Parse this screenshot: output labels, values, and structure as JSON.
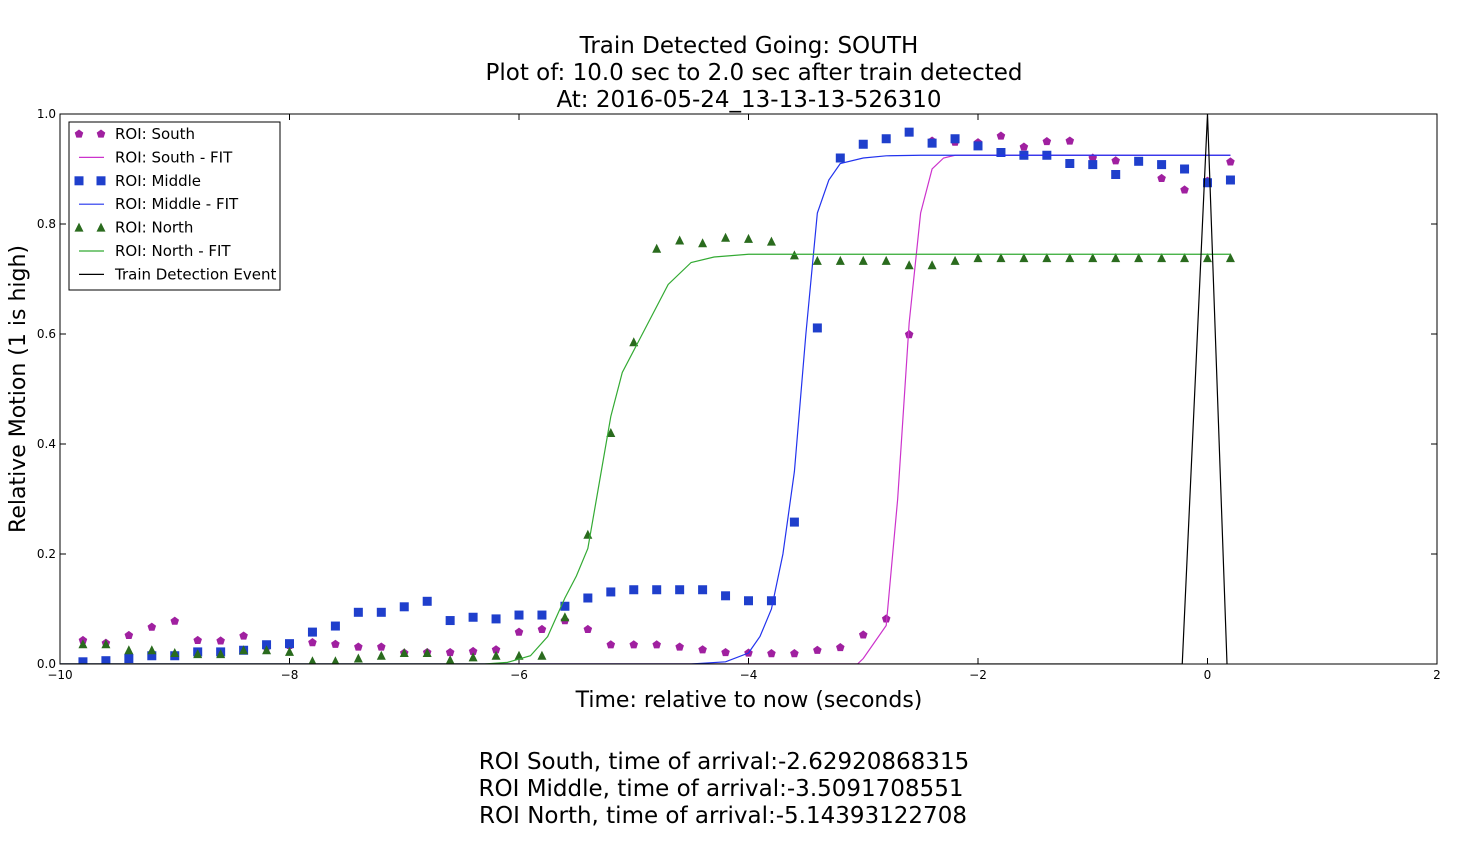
{
  "chart_data": {
    "type": "scatter",
    "title_lines": [
      "Train Detected Going: SOUTH",
      "Plot of: 10.0 sec to 2.0 sec after train detected",
      "At: 2016-05-24_13-13-13-526310"
    ],
    "xlabel": "Time: relative to now (seconds)",
    "ylabel": "Relative Motion (1 is high)",
    "xlim": [
      -10,
      2
    ],
    "ylim": [
      0,
      1
    ],
    "x_ticks": [
      {
        "value": -10,
        "label": "−10"
      },
      {
        "value": -8,
        "label": "−8"
      },
      {
        "value": -6,
        "label": "−6"
      },
      {
        "value": -4,
        "label": "−4"
      },
      {
        "value": -2,
        "label": "−2"
      },
      {
        "value": 0,
        "label": "0"
      },
      {
        "value": 2,
        "label": "2"
      }
    ],
    "y_ticks": [
      {
        "value": 0,
        "label": "0.0"
      },
      {
        "value": 0.2,
        "label": "0.2"
      },
      {
        "value": 0.4,
        "label": "0.4"
      },
      {
        "value": 0.6,
        "label": "0.6"
      },
      {
        "value": 0.8,
        "label": "0.8"
      },
      {
        "value": 1.0,
        "label": "1.0"
      }
    ],
    "grid": false,
    "legend_position": "upper-left",
    "series": [
      {
        "name": "ROI: South",
        "kind": "marker",
        "marker": "pentagon",
        "color": "#a020a0",
        "x": [
          -9.8,
          -9.6,
          -9.4,
          -9.2,
          -9.0,
          -8.8,
          -8.6,
          -8.4,
          -8.2,
          -8.0,
          -7.8,
          -7.6,
          -7.4,
          -7.2,
          -7.0,
          -6.8,
          -6.6,
          -6.4,
          -6.2,
          -6.0,
          -5.8,
          -5.6,
          -5.4,
          -5.2,
          -5.0,
          -4.8,
          -4.6,
          -4.4,
          -4.2,
          -4.0,
          -3.8,
          -3.6,
          -3.4,
          -3.2,
          -3.0,
          -2.8,
          -2.6,
          -2.4,
          -2.2,
          -2.0,
          -1.8,
          -1.6,
          -1.4,
          -1.2,
          -1.0,
          -0.8,
          -0.6,
          -0.4,
          -0.2,
          0.0,
          0.2
        ],
        "y": [
          0.043,
          0.038,
          0.052,
          0.067,
          0.078,
          0.043,
          0.042,
          0.051,
          0.031,
          0.034,
          0.039,
          0.036,
          0.031,
          0.031,
          0.02,
          0.021,
          0.021,
          0.023,
          0.026,
          0.058,
          0.063,
          0.079,
          0.063,
          0.035,
          0.035,
          0.035,
          0.031,
          0.026,
          0.021,
          0.02,
          0.019,
          0.019,
          0.025,
          0.03,
          0.053,
          0.082,
          0.599,
          0.951,
          0.949,
          0.948,
          0.96,
          0.94,
          0.95,
          0.951,
          0.92,
          0.915,
          0.913,
          0.883,
          0.862,
          0.878,
          0.913
        ]
      },
      {
        "name": "ROI: South - FIT",
        "kind": "line",
        "color": "#cc33cc",
        "x": [
          -10,
          -3.05,
          -3.0,
          -2.9,
          -2.8,
          -2.7,
          -2.6,
          -2.5,
          -2.4,
          -2.3,
          -2.2,
          -2.0,
          0.2
        ],
        "y": [
          0,
          0,
          0.01,
          0.04,
          0.07,
          0.3,
          0.62,
          0.82,
          0.9,
          0.92,
          0.925,
          0.925,
          0.925
        ]
      },
      {
        "name": "ROI: Middle",
        "kind": "marker",
        "marker": "square",
        "color": "#1f3fcc",
        "x": [
          -9.8,
          -9.6,
          -9.4,
          -9.2,
          -9.0,
          -8.8,
          -8.6,
          -8.4,
          -8.2,
          -8.0,
          -7.8,
          -7.6,
          -7.4,
          -7.2,
          -7.0,
          -6.8,
          -6.6,
          -6.4,
          -6.2,
          -6.0,
          -5.8,
          -5.6,
          -5.4,
          -5.2,
          -5.0,
          -4.8,
          -4.6,
          -4.4,
          -4.2,
          -4.0,
          -3.8,
          -3.6,
          -3.4,
          -3.2,
          -3.0,
          -2.8,
          -2.6,
          -2.4,
          -2.2,
          -2.0,
          -1.8,
          -1.6,
          -1.4,
          -1.2,
          -1.0,
          -0.8,
          -0.6,
          -0.4,
          -0.2,
          0.0,
          0.2
        ],
        "y": [
          0.004,
          0.006,
          0.01,
          0.015,
          0.015,
          0.022,
          0.022,
          0.025,
          0.035,
          0.037,
          0.058,
          0.069,
          0.094,
          0.094,
          0.104,
          0.114,
          0.079,
          0.085,
          0.082,
          0.089,
          0.089,
          0.105,
          0.12,
          0.131,
          0.135,
          0.135,
          0.135,
          0.135,
          0.124,
          0.115,
          0.115,
          0.258,
          0.611,
          0.92,
          0.945,
          0.955,
          0.967,
          0.947,
          0.955,
          0.942,
          0.93,
          0.925,
          0.925,
          0.91,
          0.908,
          0.89,
          0.914,
          0.908,
          0.9,
          0.875,
          0.88
        ]
      },
      {
        "name": "ROI: Middle - FIT",
        "kind": "line",
        "color": "#2233ee",
        "x": [
          -10,
          -4.5,
          -4.2,
          -4.0,
          -3.9,
          -3.8,
          -3.7,
          -3.6,
          -3.5,
          -3.4,
          -3.3,
          -3.2,
          -3.0,
          -2.8,
          -2.5,
          -2.0,
          0.2
        ],
        "y": [
          0,
          0,
          0.004,
          0.02,
          0.05,
          0.1,
          0.2,
          0.35,
          0.6,
          0.82,
          0.88,
          0.91,
          0.92,
          0.924,
          0.925,
          0.925,
          0.925
        ]
      },
      {
        "name": "ROI: North",
        "kind": "marker",
        "marker": "triangle",
        "color": "#2a6b1e",
        "x": [
          -9.8,
          -9.6,
          -9.4,
          -9.2,
          -9.0,
          -8.8,
          -8.6,
          -8.4,
          -8.2,
          -8.0,
          -7.8,
          -7.6,
          -7.4,
          -7.2,
          -7.0,
          -6.8,
          -6.6,
          -6.4,
          -6.2,
          -6.0,
          -5.8,
          -5.6,
          -5.4,
          -5.2,
          -5.0,
          -4.8,
          -4.6,
          -4.4,
          -4.2,
          -4.0,
          -3.8,
          -3.6,
          -3.4,
          -3.2,
          -3.0,
          -2.8,
          -2.6,
          -2.4,
          -2.2,
          -2.0,
          -1.8,
          -1.6,
          -1.4,
          -1.2,
          -1.0,
          -0.8,
          -0.6,
          -0.4,
          -0.2,
          0.0,
          0.2
        ],
        "y": [
          0.036,
          0.036,
          0.025,
          0.025,
          0.02,
          0.018,
          0.018,
          0.025,
          0.025,
          0.022,
          0.005,
          0.005,
          0.01,
          0.015,
          0.02,
          0.02,
          0.007,
          0.012,
          0.015,
          0.015,
          0.015,
          0.085,
          0.235,
          0.42,
          0.585,
          0.755,
          0.77,
          0.765,
          0.775,
          0.773,
          0.768,
          0.743,
          0.733,
          0.733,
          0.733,
          0.733,
          0.725,
          0.725,
          0.733,
          0.738,
          0.738,
          0.738,
          0.738,
          0.738,
          0.738,
          0.738,
          0.738,
          0.738,
          0.738,
          0.738,
          0.738
        ]
      },
      {
        "name": "ROI: North - FIT",
        "kind": "line",
        "color": "#33aa33",
        "x": [
          -10,
          -6.3,
          -6.1,
          -5.9,
          -5.75,
          -5.6,
          -5.5,
          -5.4,
          -5.3,
          -5.2,
          -5.1,
          -4.9,
          -4.7,
          -4.5,
          -4.3,
          -4.0,
          -3.6,
          0.2
        ],
        "y": [
          0,
          0,
          0.003,
          0.015,
          0.05,
          0.12,
          0.16,
          0.21,
          0.33,
          0.45,
          0.53,
          0.61,
          0.69,
          0.73,
          0.74,
          0.745,
          0.745,
          0.745
        ]
      },
      {
        "name": "Train Detection Event",
        "kind": "line",
        "color": "#000000",
        "x": [
          -10,
          -0.22,
          0.0,
          0.17
        ],
        "y": [
          0,
          0,
          1.0,
          0
        ]
      }
    ]
  },
  "footer_lines": [
    "ROI South, time of arrival:-2.62920868315",
    "ROI Middle, time of arrival:-3.5091708551",
    "ROI North, time of arrival:-5.14393122708"
  ]
}
